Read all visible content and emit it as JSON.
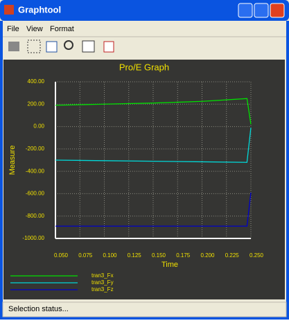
{
  "window": {
    "title": "Graphtool",
    "menu": [
      "File",
      "View",
      "Format"
    ],
    "status": "Selection status..."
  },
  "chart_data": {
    "type": "line",
    "title": "Pro/E Graph",
    "x_label": "Time",
    "y_label": "Measure",
    "x": [
      0.05,
      0.1,
      0.15,
      0.2,
      0.246,
      0.25
    ],
    "series": [
      {
        "name": "tran3_Fx",
        "color": "#00e000",
        "values": [
          190,
          200,
          210,
          225,
          250,
          20
        ]
      },
      {
        "name": "tran3_Fy",
        "color": "#00d8d8",
        "values": [
          -300,
          -305,
          -310,
          -315,
          -320,
          -10
        ]
      },
      {
        "name": "tran3_Fz",
        "color": "#0000c8",
        "values": [
          -890,
          -890,
          -890,
          -890,
          -890,
          -590
        ]
      }
    ],
    "xlim": [
      0.05,
      0.25
    ],
    "xticks": [
      {
        "value": 0.05,
        "label": "0.050"
      },
      {
        "value": 0.075,
        "label": "0.075"
      },
      {
        "value": 0.1,
        "label": "0.100"
      },
      {
        "value": 0.125,
        "label": "0.125"
      },
      {
        "value": 0.15,
        "label": "0.150"
      },
      {
        "value": 0.175,
        "label": "0.175"
      },
      {
        "value": 0.2,
        "label": "0.200"
      },
      {
        "value": 0.225,
        "label": "0.225"
      },
      {
        "value": 0.25,
        "label": "0.250"
      }
    ],
    "ylim": [
      -1000,
      400
    ],
    "yticks": [
      {
        "value": 400,
        "label": "400.00"
      },
      {
        "value": 200,
        "label": "200.00"
      },
      {
        "value": 0,
        "label": "0.00"
      },
      {
        "value": -200,
        "label": "-200.00"
      },
      {
        "value": -400,
        "label": "-400.00"
      },
      {
        "value": -600,
        "label": "-600.00"
      },
      {
        "value": -800,
        "label": "-800.00"
      },
      {
        "value": -1000,
        "label": "-1000.00"
      }
    ],
    "grid": true,
    "legend": "bottom-left"
  }
}
